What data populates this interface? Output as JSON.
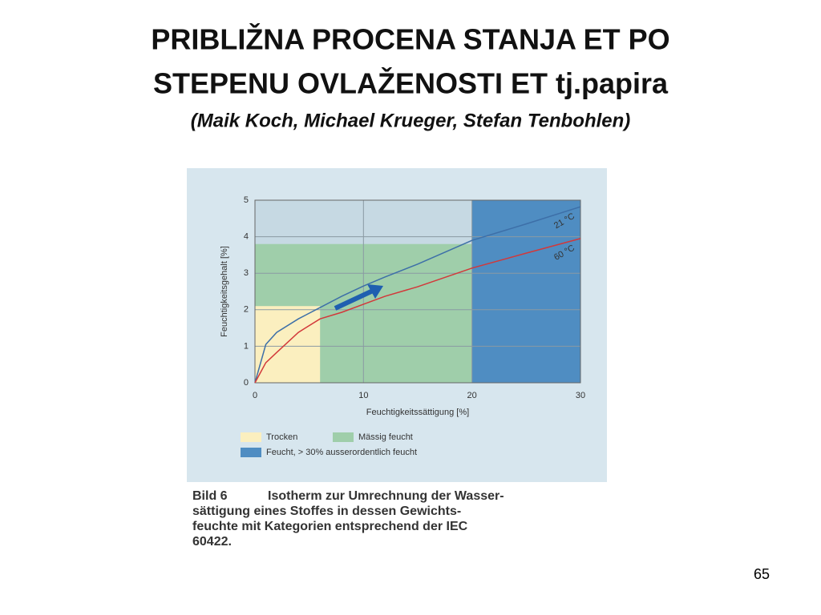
{
  "slide": {
    "title_lines": [
      "PRIBLIŽNA PROCENA STANJA ET PO",
      "STEPENU OVLAŽENOSTI ET tj.papira"
    ],
    "subtitle": "(Maik Koch, Michael Krueger, Stefan Tenbohlen)",
    "page_number": "65"
  },
  "chart_data": {
    "type": "line",
    "x_label": "Feuchtigkeitssättigung [%]",
    "y_label": "Feuchtigkeitsgehalt [%]",
    "x": [
      0,
      1,
      2,
      4,
      6,
      8,
      10,
      12,
      15,
      20,
      25,
      30
    ],
    "series": [
      {
        "name": "21 °C",
        "color": "#3d6fa8",
        "values": [
          0,
          1.05,
          1.38,
          1.75,
          2.06,
          2.37,
          2.65,
          2.9,
          3.25,
          3.9,
          4.35,
          4.82
        ]
      },
      {
        "name": "60 °C",
        "color": "#d2383a",
        "values": [
          0,
          0.55,
          0.83,
          1.38,
          1.75,
          1.93,
          2.15,
          2.37,
          2.63,
          3.14,
          3.55,
          3.95
        ]
      }
    ],
    "regions": [
      {
        "name": "Mässig feucht",
        "color": "#9fceaa",
        "xlim": [
          0,
          20
        ],
        "ylim": [
          0,
          3.8
        ]
      },
      {
        "name": "Trocken",
        "color": "#fbefbf",
        "xlim": [
          0,
          6
        ],
        "ylim": [
          0,
          2.1
        ]
      },
      {
        "name": "Feucht, > 30% ausserordentlich feucht",
        "color": "#4f8dc2",
        "xlim": [
          20,
          30
        ],
        "ylim": [
          0,
          5
        ]
      }
    ],
    "xlim": [
      0,
      30
    ],
    "xticks": [
      0,
      10,
      20,
      30
    ],
    "ylim": [
      0,
      5
    ],
    "yticks": [
      0,
      1,
      2,
      3,
      4,
      5
    ],
    "grid": true
  },
  "caption": {
    "label": "Bild 6",
    "lines": [
      "Isotherm zur Umrechnung der Wasser-",
      "sättigung eines Stoffes in dessen Gewichts-",
      "feuchte mit Kategorien entsprechend der IEC",
      "60422."
    ]
  }
}
